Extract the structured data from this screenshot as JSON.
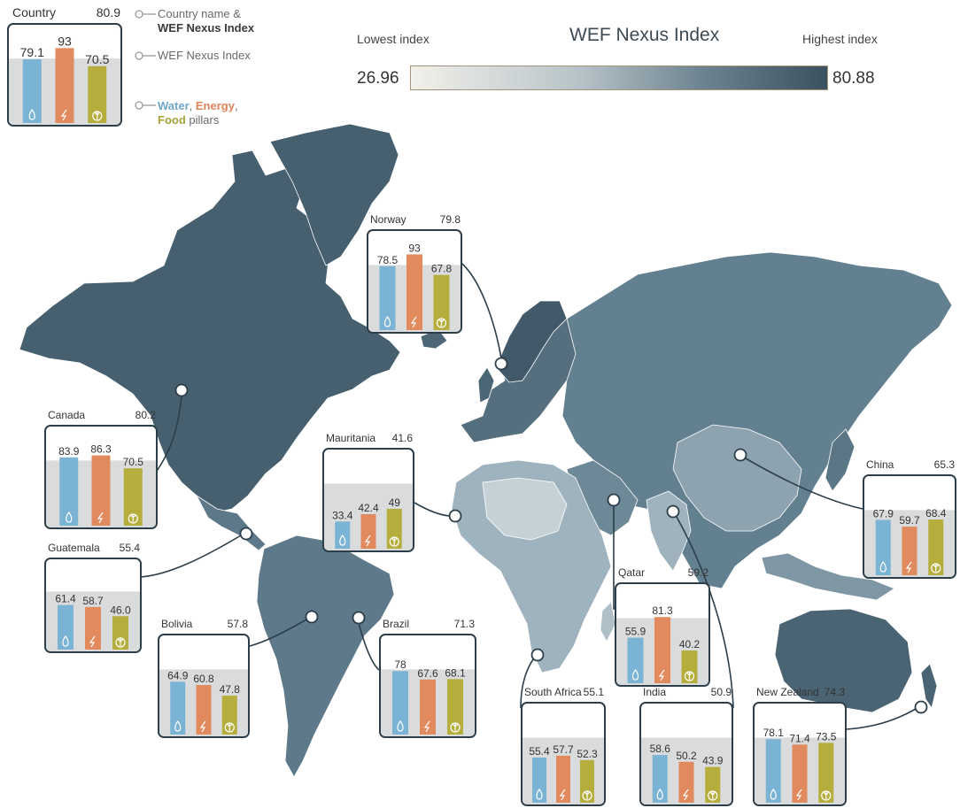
{
  "title": "WEF Nexus Index",
  "scale": {
    "low_label": "Lowest index",
    "high_label": "Highest index",
    "min": "26.96",
    "max": "80.88"
  },
  "legend": {
    "example_name": "Country",
    "example_index": "80.9",
    "example_water": "79.1",
    "example_energy": "93",
    "example_food": "70.5",
    "line1": "Country name &",
    "line2": "WEF Nexus Index",
    "line3": "WEF Nexus Index",
    "water": "Water",
    "comma1": ", ",
    "energy": "Energy",
    "comma2": ",",
    "food": "Food",
    "pillars": " pillars"
  },
  "colors": {
    "water": "#7ab3d4",
    "energy": "#e08a5e",
    "food": "#b6ae3c",
    "land": "#5a7585",
    "land_dark": "#47606f",
    "card_border": "#2c3e4a",
    "card_bg_band": "#d9dbdc"
  },
  "icons": [
    "water-drop-icon",
    "lightning-bolt-icon",
    "wheat-sprout-icon"
  ],
  "countries": [
    {
      "name": "Canada",
      "index": "80.2",
      "water": "83.9",
      "energy": "86.3",
      "food": "70.5"
    },
    {
      "name": "Guatemala",
      "index": "55.4",
      "water": "61.4",
      "energy": "58.7",
      "food": "46.0"
    },
    {
      "name": "Bolivia",
      "index": "57.8",
      "water": "64.9",
      "energy": "60.8",
      "food": "47.8"
    },
    {
      "name": "Brazil",
      "index": "71.3",
      "water": "78",
      "energy": "67.6",
      "food": "68.1"
    },
    {
      "name": "Norway",
      "index": "79.8",
      "water": "78.5",
      "energy": "93",
      "food": "67.8"
    },
    {
      "name": "Mauritania",
      "index": "41.6",
      "water": "33.4",
      "energy": "42.4",
      "food": "49"
    },
    {
      "name": "Qatar",
      "index": "59.2",
      "water": "55.9",
      "energy": "81.3",
      "food": "40.2"
    },
    {
      "name": "South Africa",
      "index": "55.1",
      "water": "55.4",
      "energy": "57.7",
      "food": "52.3"
    },
    {
      "name": "India",
      "index": "50.9",
      "water": "58.6",
      "energy": "50.2",
      "food": "43.9"
    },
    {
      "name": "China",
      "index": "65.3",
      "water": "67.9",
      "energy": "59.7",
      "food": "68.4"
    },
    {
      "name": "New Zealand",
      "index": "74.3",
      "water": "78.1",
      "energy": "71.4",
      "food": "73.5"
    }
  ]
}
